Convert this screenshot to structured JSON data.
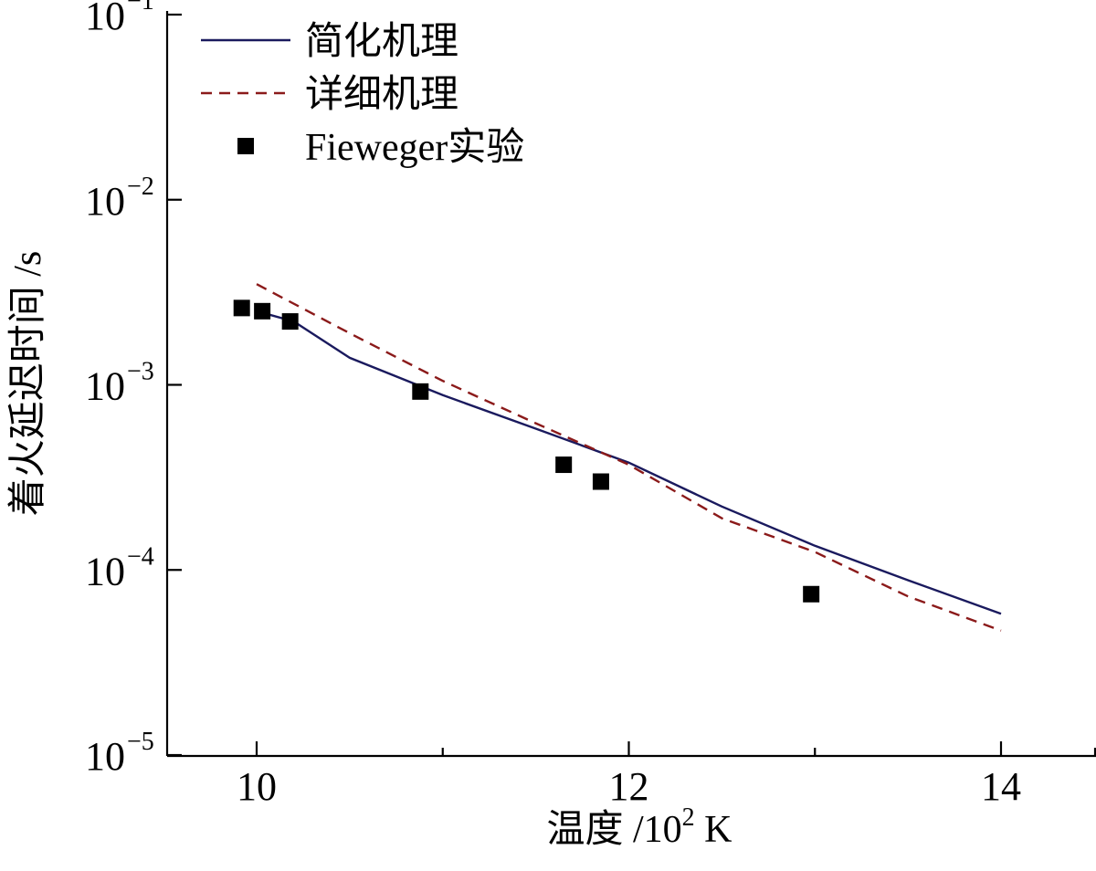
{
  "chart_data": {
    "type": "line",
    "xlabel": "温度 /10",
    "xlabel_exp": "2",
    "xlabel_unit": " K",
    "ylabel": "着火延迟时间 /s",
    "xlim": [
      9.6,
      14.0
    ],
    "ylim_log10": [
      -5.3,
      -1.0
    ],
    "yscale": "log",
    "x_ticks": [
      10,
      12,
      14
    ],
    "x_tick_labels": [
      "10",
      "12",
      "14"
    ],
    "y_ticks_log10": [
      -1,
      -2,
      -3,
      -4,
      -5
    ],
    "y_tick_base": "10",
    "y_tick_exponents": [
      "−1",
      "−2",
      "−3",
      "−4",
      "−5"
    ],
    "legend_position": "top-left",
    "series": [
      {
        "name": "简化机理",
        "style": "solid",
        "color": "#1a1a5e",
        "x": [
          10.0,
          10.2,
          10.5,
          11.0,
          11.5,
          12.0,
          12.5,
          13.0,
          13.5,
          14.0
        ],
        "y": [
          0.0025,
          0.0022,
          0.0014,
          0.00088,
          0.00058,
          0.00038,
          0.00022,
          0.000135,
          8.8e-05,
          5.8e-05
        ]
      },
      {
        "name": "详细机理",
        "style": "dashed",
        "color": "#8b1a1a",
        "x": [
          10.0,
          10.5,
          11.0,
          11.5,
          12.0,
          12.5,
          13.0,
          13.5,
          14.0
        ],
        "y": [
          0.0035,
          0.0019,
          0.00105,
          0.00062,
          0.00037,
          0.00019,
          0.000125,
          7.2e-05,
          4.7e-05
        ]
      },
      {
        "name": "Fieweger实验",
        "style": "marker-square",
        "color": "#000000",
        "x": [
          9.92,
          10.03,
          10.18,
          10.88,
          11.65,
          11.85,
          12.98
        ],
        "y": [
          0.0026,
          0.0025,
          0.0022,
          0.00092,
          0.00037,
          0.0003,
          7.4e-05
        ]
      }
    ]
  }
}
